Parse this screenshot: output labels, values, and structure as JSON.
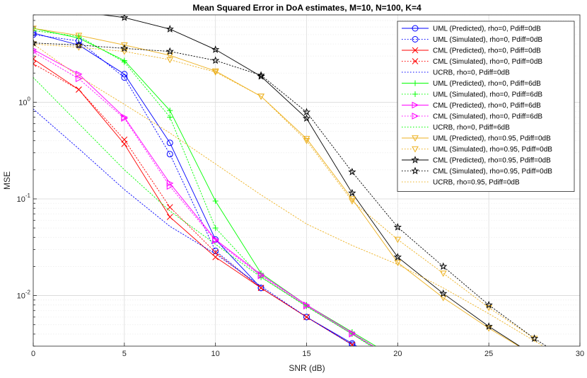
{
  "chart_data": {
    "type": "line",
    "title": "Mean Squared Error in DoA estimates, M=10, N=100, K=4",
    "xlabel": "SNR (dB)",
    "ylabel": "MSE",
    "xlim": [
      0,
      30
    ],
    "ylim": [
      0.003,
      8
    ],
    "yscale": "log",
    "grid": true,
    "legend_position": "top-right",
    "x_ticks": [
      "0",
      "5",
      "10",
      "15",
      "20",
      "25",
      "30"
    ],
    "y_ticks": [
      {
        "base": "10",
        "exp": "0",
        "value": 1
      },
      {
        "base": "10",
        "exp": "-1",
        "value": 0.1
      },
      {
        "base": "10",
        "exp": "-2",
        "value": 0.01
      }
    ],
    "x": [
      0,
      2.5,
      5,
      7.5,
      10,
      12.5,
      15,
      17.5,
      20,
      22.5,
      25,
      27.5,
      30
    ],
    "series": [
      {
        "name": "UML (Predicted), rho=0, Pdiff=0dB",
        "color": "#0000ff",
        "line": "solid",
        "marker": "circle",
        "values": [
          5.2,
          3.9,
          1.95,
          0.38,
          0.038,
          0.012,
          0.006,
          0.0032,
          0.0017,
          null,
          null,
          null,
          null
        ]
      },
      {
        "name": "UML (Simulated), rho=0, Pdiff=0dB",
        "color": "#0000ff",
        "line": "dotted",
        "marker": "circle",
        "values": [
          5.0,
          4.3,
          1.8,
          0.29,
          0.029,
          0.012,
          0.006,
          0.0031,
          0.0016,
          null,
          null,
          null,
          null
        ]
      },
      {
        "name": "CML (Predicted), rho=0, Pdiff=0dB",
        "color": "#ff0000",
        "line": "solid",
        "marker": "x",
        "values": [
          2.8,
          1.35,
          0.37,
          0.065,
          0.025,
          0.012,
          0.006,
          0.0031,
          0.0016,
          null,
          null,
          null,
          null
        ]
      },
      {
        "name": "CML (Simulated), rho=0, Pdiff=0dB",
        "color": "#ff0000",
        "line": "dotted",
        "marker": "x",
        "values": [
          2.5,
          1.35,
          0.41,
          0.082,
          0.028,
          0.012,
          0.006,
          0.0031,
          0.0016,
          null,
          null,
          null,
          null
        ]
      },
      {
        "name": "UCRB, rho=0, Pdiff=0dB",
        "color": "#0000ff",
        "line": "dotted",
        "marker": "none",
        "values": [
          0.85,
          0.33,
          0.125,
          0.052,
          0.027,
          0.0125,
          0.006,
          0.0031,
          0.0016,
          null,
          null,
          null,
          null
        ]
      },
      {
        "name": "UML (Predicted), rho=0, Pdiff=6dB",
        "color": "#00ff00",
        "line": "solid",
        "marker": "plus",
        "values": [
          5.8,
          4.6,
          2.7,
          0.82,
          0.095,
          0.017,
          0.008,
          0.0042,
          0.0022,
          null,
          null,
          null,
          null
        ]
      },
      {
        "name": "UML (Simulated), rho=0, Pdiff=6dB",
        "color": "#00ff00",
        "line": "dotted",
        "marker": "plus",
        "values": [
          5.5,
          4.8,
          2.6,
          0.7,
          0.05,
          0.0155,
          0.0078,
          0.004,
          0.0021,
          null,
          null,
          null,
          null
        ]
      },
      {
        "name": "CML (Predicted), rho=0, Pdiff=6dB",
        "color": "#ff00ff",
        "line": "solid",
        "marker": "triangle-right",
        "values": [
          3.5,
          1.95,
          0.7,
          0.145,
          0.038,
          0.0165,
          0.008,
          0.0041,
          0.0021,
          null,
          null,
          null,
          null
        ]
      },
      {
        "name": "CML (Simulated), rho=0, Pdiff=6dB",
        "color": "#ff00ff",
        "line": "dotted",
        "marker": "triangle-right",
        "values": [
          3.3,
          1.75,
          0.68,
          0.135,
          0.037,
          0.016,
          0.0078,
          0.004,
          0.002,
          null,
          null,
          null,
          null
        ]
      },
      {
        "name": "UCRB, rho=0, Pdiff=6dB",
        "color": "#00ff00",
        "line": "dotted",
        "marker": "none",
        "values": [
          1.8,
          0.6,
          0.2,
          0.075,
          0.034,
          0.0155,
          0.0077,
          0.004,
          0.002,
          null,
          null,
          null,
          null
        ]
      },
      {
        "name": "UML (Predicted), rho=0.95, Pdiff=0dB",
        "color": "#edb120",
        "line": "solid",
        "marker": "triangle-down",
        "values": [
          5.8,
          4.9,
          3.9,
          3.05,
          2.1,
          1.15,
          0.42,
          0.1,
          0.022,
          0.0095,
          0.0046,
          0.0024,
          null
        ]
      },
      {
        "name": "UML (Simulated), rho=0.95, Pdiff=0dB",
        "color": "#edb120",
        "line": "dotted",
        "marker": "triangle-down",
        "values": [
          4.0,
          3.7,
          3.35,
          2.75,
          2.05,
          1.15,
          0.4,
          0.095,
          0.038,
          0.017,
          0.0075,
          0.0036,
          null
        ]
      },
      {
        "name": "CML (Predicted), rho=0.95, Pdiff=0dB",
        "color": "#000000",
        "line": "solid",
        "marker": "star",
        "values": [
          9.5,
          8.6,
          7.5,
          5.7,
          3.5,
          1.85,
          0.68,
          0.115,
          0.025,
          0.0105,
          0.0048,
          0.0024,
          null
        ]
      },
      {
        "name": "CML (Simulated), rho=0.95, Pdiff=0dB",
        "color": "#000000",
        "line": "dotted",
        "marker": "star",
        "values": [
          4.1,
          3.9,
          3.6,
          3.35,
          2.7,
          1.9,
          0.79,
          0.19,
          0.051,
          0.02,
          0.008,
          0.0036,
          0.0018
        ]
      },
      {
        "name": "UCRB, rho=0.95, Pdiff=0dB",
        "color": "#edb120",
        "line": "dotted",
        "marker": "none",
        "values": [
          4.0,
          1.85,
          0.95,
          0.48,
          0.23,
          0.11,
          0.055,
          0.033,
          0.021,
          0.012,
          0.0065,
          0.0034,
          0.0018
        ]
      }
    ]
  }
}
